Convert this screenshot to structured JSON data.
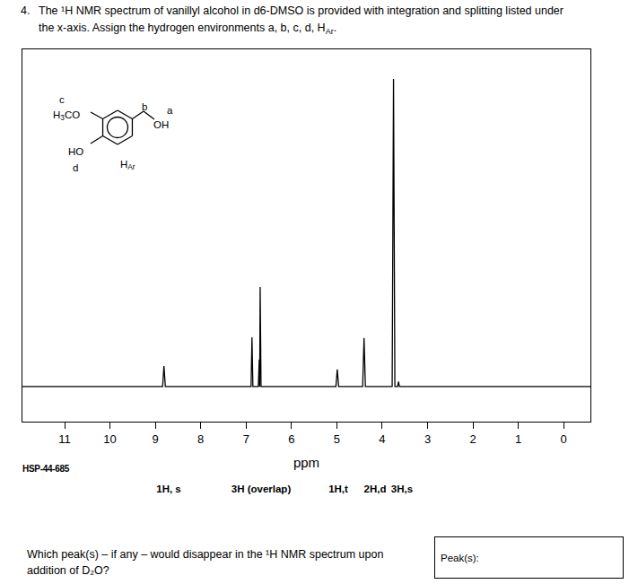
{
  "question": {
    "number": "4.",
    "lines": [
      [
        {
          "text": "The ¹H NMR spectrum of vanillyl alcohol in d6-DMSO is provided with integration and splitting listed under"
        }
      ],
      [
        {
          "text": "the x-axis.  Assign the hydrogen environments a, b, c, d, H"
        },
        {
          "text": "Ar",
          "sub": true
        },
        {
          "text": "."
        }
      ]
    ]
  },
  "structure": {
    "labels": [
      [
        {
          "text": "c"
        }
      ],
      [
        {
          "text": "H"
        },
        {
          "text": "3",
          "sub": true
        },
        {
          "text": "CO"
        }
      ],
      [
        {
          "text": "b"
        }
      ],
      [
        {
          "text": "a"
        }
      ],
      [
        {
          "text": "OH"
        }
      ],
      [
        {
          "text": "HO"
        }
      ],
      [
        {
          "text": "d"
        }
      ],
      [
        {
          "text": "H"
        },
        {
          "text": "Ar",
          "sub": true
        }
      ]
    ]
  },
  "chart_data": {
    "type": "line",
    "x": [
      11.93,
      8.84,
      8.81,
      8.78,
      6.89,
      6.87,
      6.85,
      6.73,
      6.71,
      6.7,
      6.69,
      6.67,
      5.02,
      5.005,
      4.99,
      4.975,
      4.96,
      4.43,
      4.4,
      4.37,
      3.78,
      3.75,
      3.72,
      3.66,
      3.64,
      3.62,
      -0.59
    ],
    "values": [
      0,
      0,
      6.1,
      0,
      0,
      14.6,
      0,
      0,
      8,
      0,
      29.5,
      0,
      0,
      2.5,
      5.1,
      2.5,
      0,
      0,
      14.4,
      0,
      0,
      91.2,
      0,
      0,
      1.5,
      0,
      0
    ],
    "xlim": [
      11.93,
      -0.59
    ],
    "xticks": [
      11,
      10,
      9,
      8,
      7,
      6,
      5,
      4,
      3,
      2,
      1,
      0
    ],
    "ylim": [
      -10.4,
      100
    ],
    "xlabel": "ppm",
    "tick_labels": "x",
    "color": "#000000",
    "source_label": "HSP-44-685",
    "annotations": [
      "1H, s",
      "3H (overlap)",
      "1H,t",
      "2H,d",
      "3H,s"
    ]
  },
  "prompt": {
    "lines": [
      "Which peak(s) – if any – would disappear in the ¹H NMR spectrum upon",
      "addition of D₂O?"
    ],
    "answer_label": "Peak(s):"
  }
}
